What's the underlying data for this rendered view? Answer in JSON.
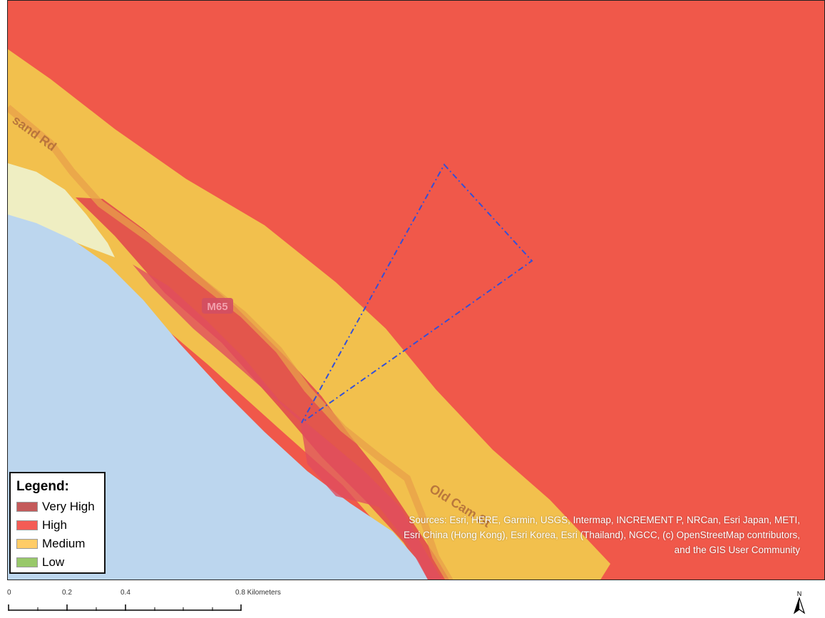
{
  "map": {
    "road_labels": [
      "sand Rd",
      "M65",
      "Old Cam St"
    ],
    "colors": {
      "very_high": "#c55a5a",
      "high": "#f0584a",
      "medium": "#f2c04d",
      "low": "#9bc45a",
      "water": "#bcd6ee"
    }
  },
  "legend": {
    "title": "Legend:",
    "items": [
      {
        "label": "Very High",
        "color": "#c45a5a"
      },
      {
        "label": "High",
        "color": "#f45c55"
      },
      {
        "label": "Medium",
        "color": "#ffcc66"
      },
      {
        "label": "Low",
        "color": "#98c86a"
      }
    ]
  },
  "attribution": "Sources: Esri, HERE, Garmin, USGS, Intermap, INCREMENT P, NRCan, Esri Japan, METI, Esri China (Hong Kong), Esri Korea, Esri (Thailand), NGCC, (c) OpenStreetMap contributors, and the GIS User Community",
  "scalebar": {
    "tick_labels": [
      "0",
      "0.2",
      "0.4",
      "0.8 Kilometers"
    ]
  },
  "north_arrow": {
    "label": "N"
  }
}
